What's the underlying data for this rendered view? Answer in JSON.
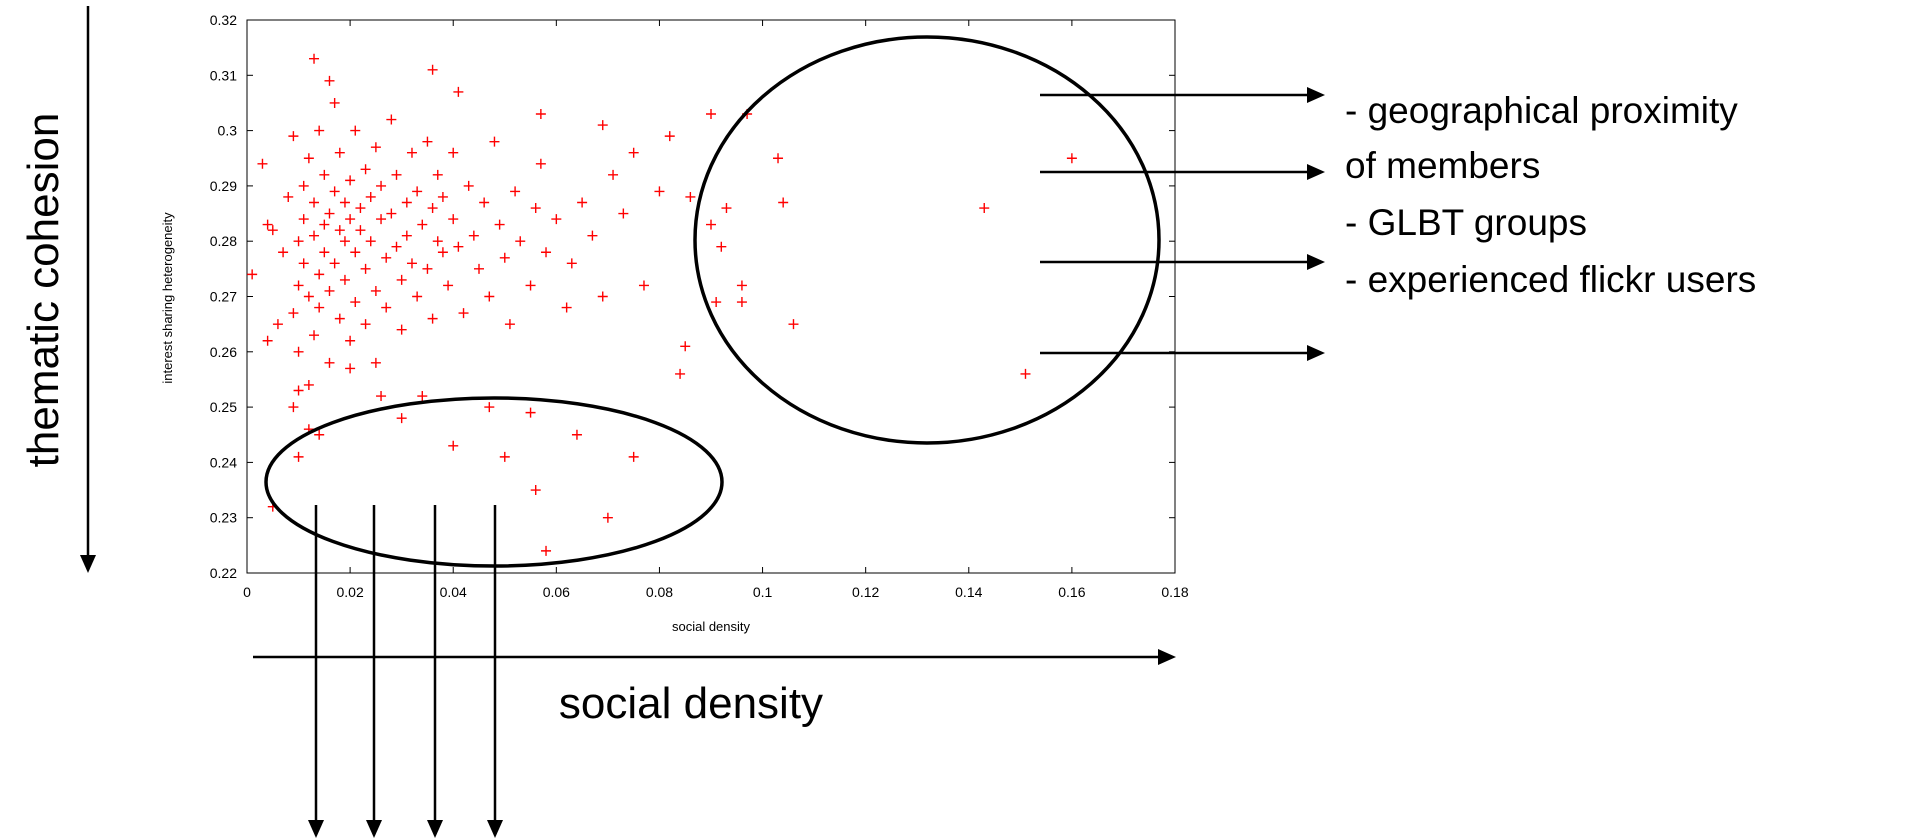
{
  "chart_data": {
    "type": "scatter",
    "xlabel": "social density",
    "ylabel": "interest sharing heterogeneity",
    "xlim": [
      0,
      0.18
    ],
    "ylim": [
      0.22,
      0.32
    ],
    "x_ticks": [
      "0",
      "0.02",
      "0.04",
      "0.06",
      "0.08",
      "0.1",
      "0.12",
      "0.14",
      "0.16",
      "0.18"
    ],
    "y_ticks": [
      "0.22",
      "0.23",
      "0.24",
      "0.25",
      "0.26",
      "0.27",
      "0.28",
      "0.29",
      "0.3",
      "0.31",
      "0.32"
    ],
    "grid": false,
    "marker": "+",
    "marker_color": "#ff0000",
    "points": [
      [
        0.001,
        0.274
      ],
      [
        0.003,
        0.294
      ],
      [
        0.004,
        0.283
      ],
      [
        0.004,
        0.262
      ],
      [
        0.005,
        0.282
      ],
      [
        0.006,
        0.265
      ],
      [
        0.007,
        0.278
      ],
      [
        0.008,
        0.288
      ],
      [
        0.009,
        0.299
      ],
      [
        0.009,
        0.267
      ],
      [
        0.01,
        0.28
      ],
      [
        0.01,
        0.272
      ],
      [
        0.01,
        0.26
      ],
      [
        0.011,
        0.284
      ],
      [
        0.011,
        0.276
      ],
      [
        0.011,
        0.29
      ],
      [
        0.012,
        0.295
      ],
      [
        0.012,
        0.27
      ],
      [
        0.012,
        0.254
      ],
      [
        0.013,
        0.281
      ],
      [
        0.013,
        0.263
      ],
      [
        0.013,
        0.287
      ],
      [
        0.014,
        0.3
      ],
      [
        0.014,
        0.274
      ],
      [
        0.014,
        0.268
      ],
      [
        0.015,
        0.283
      ],
      [
        0.015,
        0.292
      ],
      [
        0.015,
        0.278
      ],
      [
        0.016,
        0.258
      ],
      [
        0.016,
        0.285
      ],
      [
        0.016,
        0.271
      ],
      [
        0.017,
        0.305
      ],
      [
        0.017,
        0.289
      ],
      [
        0.017,
        0.276
      ],
      [
        0.018,
        0.282
      ],
      [
        0.018,
        0.266
      ],
      [
        0.018,
        0.296
      ],
      [
        0.019,
        0.28
      ],
      [
        0.019,
        0.287
      ],
      [
        0.019,
        0.273
      ],
      [
        0.02,
        0.291
      ],
      [
        0.02,
        0.284
      ],
      [
        0.02,
        0.262
      ],
      [
        0.021,
        0.278
      ],
      [
        0.021,
        0.269
      ],
      [
        0.021,
        0.3
      ],
      [
        0.022,
        0.286
      ],
      [
        0.022,
        0.282
      ],
      [
        0.023,
        0.293
      ],
      [
        0.023,
        0.275
      ],
      [
        0.023,
        0.265
      ],
      [
        0.024,
        0.288
      ],
      [
        0.024,
        0.28
      ],
      [
        0.025,
        0.297
      ],
      [
        0.025,
        0.271
      ],
      [
        0.025,
        0.258
      ],
      [
        0.026,
        0.284
      ],
      [
        0.026,
        0.29
      ],
      [
        0.027,
        0.277
      ],
      [
        0.027,
        0.268
      ],
      [
        0.028,
        0.302
      ],
      [
        0.028,
        0.285
      ],
      [
        0.029,
        0.279
      ],
      [
        0.029,
        0.292
      ],
      [
        0.03,
        0.273
      ],
      [
        0.03,
        0.264
      ],
      [
        0.031,
        0.287
      ],
      [
        0.031,
        0.281
      ],
      [
        0.032,
        0.296
      ],
      [
        0.032,
        0.276
      ],
      [
        0.033,
        0.27
      ],
      [
        0.033,
        0.289
      ],
      [
        0.034,
        0.283
      ],
      [
        0.035,
        0.298
      ],
      [
        0.035,
        0.275
      ],
      [
        0.036,
        0.286
      ],
      [
        0.036,
        0.266
      ],
      [
        0.037,
        0.292
      ],
      [
        0.037,
        0.28
      ],
      [
        0.038,
        0.278
      ],
      [
        0.038,
        0.288
      ],
      [
        0.039,
        0.272
      ],
      [
        0.04,
        0.296
      ],
      [
        0.04,
        0.284
      ],
      [
        0.041,
        0.279
      ],
      [
        0.042,
        0.267
      ],
      [
        0.043,
        0.29
      ],
      [
        0.044,
        0.281
      ],
      [
        0.045,
        0.275
      ],
      [
        0.046,
        0.287
      ],
      [
        0.047,
        0.27
      ],
      [
        0.048,
        0.298
      ],
      [
        0.049,
        0.283
      ],
      [
        0.05,
        0.277
      ],
      [
        0.051,
        0.265
      ],
      [
        0.052,
        0.289
      ],
      [
        0.053,
        0.28
      ],
      [
        0.055,
        0.272
      ],
      [
        0.056,
        0.286
      ],
      [
        0.057,
        0.294
      ],
      [
        0.058,
        0.278
      ],
      [
        0.06,
        0.284
      ],
      [
        0.062,
        0.268
      ],
      [
        0.063,
        0.276
      ],
      [
        0.065,
        0.287
      ],
      [
        0.067,
        0.281
      ],
      [
        0.069,
        0.27
      ],
      [
        0.071,
        0.292
      ],
      [
        0.073,
        0.285
      ],
      [
        0.075,
        0.296
      ],
      [
        0.077,
        0.272
      ],
      [
        0.08,
        0.289
      ],
      [
        0.082,
        0.299
      ],
      [
        0.085,
        0.261
      ],
      [
        0.086,
        0.288
      ],
      [
        0.009,
        0.25
      ],
      [
        0.01,
        0.253
      ],
      [
        0.012,
        0.246
      ],
      [
        0.014,
        0.245
      ],
      [
        0.02,
        0.257
      ],
      [
        0.026,
        0.252
      ],
      [
        0.03,
        0.248
      ],
      [
        0.034,
        0.252
      ],
      [
        0.04,
        0.243
      ],
      [
        0.047,
        0.25
      ],
      [
        0.05,
        0.241
      ],
      [
        0.055,
        0.249
      ],
      [
        0.058,
        0.224
      ],
      [
        0.064,
        0.245
      ],
      [
        0.07,
        0.23
      ],
      [
        0.075,
        0.241
      ],
      [
        0.056,
        0.235
      ],
      [
        0.01,
        0.241
      ],
      [
        0.005,
        0.232
      ],
      [
        0.013,
        0.313
      ],
      [
        0.016,
        0.309
      ],
      [
        0.036,
        0.311
      ],
      [
        0.041,
        0.307
      ],
      [
        0.057,
        0.303
      ],
      [
        0.069,
        0.301
      ],
      [
        0.084,
        0.256
      ],
      [
        0.09,
        0.303
      ],
      [
        0.09,
        0.283
      ],
      [
        0.091,
        0.269
      ],
      [
        0.092,
        0.279
      ],
      [
        0.093,
        0.286
      ],
      [
        0.096,
        0.272
      ],
      [
        0.096,
        0.269
      ],
      [
        0.097,
        0.303
      ],
      [
        0.103,
        0.295
      ],
      [
        0.104,
        0.287
      ],
      [
        0.106,
        0.265
      ],
      [
        0.143,
        0.286
      ],
      [
        0.151,
        0.256
      ],
      [
        0.16,
        0.295
      ]
    ]
  },
  "annotations": {
    "left_label": "thematic cohesion",
    "bottom_label": "social density",
    "right_notes": [
      "- geographical proximity",
      "of members",
      "- GLBT groups",
      "- experienced flickr users"
    ]
  }
}
